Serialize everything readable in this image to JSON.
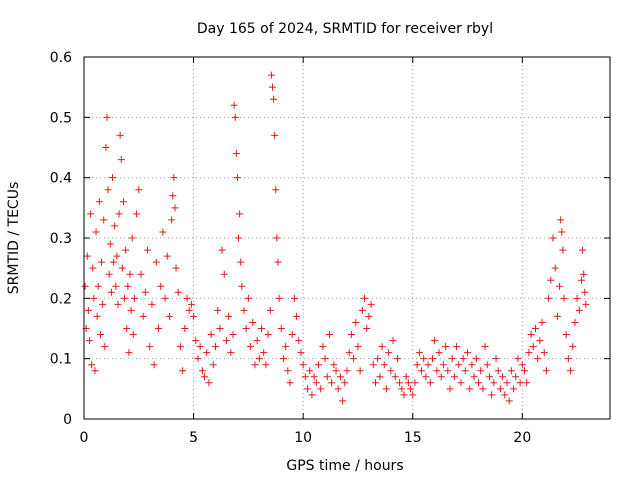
{
  "chart_data": {
    "type": "scatter",
    "title": "Day 165 of 2024, SRMTID for receiver rbyl",
    "xlabel": "GPS time / hours",
    "ylabel": "SRMTID / TECUs",
    "xlim": [
      0,
      24
    ],
    "ylim": [
      0,
      0.6
    ],
    "xticks": [
      "0",
      "5",
      "10",
      "15",
      "20"
    ],
    "yticks": [
      "0",
      "0.1",
      "0.2",
      "0.3",
      "0.4",
      "0.5",
      "0.6"
    ],
    "grid": true,
    "marker": "plus",
    "color": "#e41a1c",
    "series": [
      {
        "name": "SRMTID",
        "points": [
          [
            0.05,
            0.22
          ],
          [
            0.1,
            0.15
          ],
          [
            0.15,
            0.27
          ],
          [
            0.2,
            0.18
          ],
          [
            0.25,
            0.13
          ],
          [
            0.3,
            0.34
          ],
          [
            0.35,
            0.09
          ],
          [
            0.4,
            0.25
          ],
          [
            0.45,
            0.2
          ],
          [
            0.5,
            0.08
          ],
          [
            0.55,
            0.31
          ],
          [
            0.6,
            0.17
          ],
          [
            0.65,
            0.22
          ],
          [
            0.7,
            0.36
          ],
          [
            0.75,
            0.14
          ],
          [
            0.8,
            0.26
          ],
          [
            0.85,
            0.19
          ],
          [
            0.9,
            0.33
          ],
          [
            0.95,
            0.12
          ],
          [
            1.0,
            0.45
          ],
          [
            1.05,
            0.5
          ],
          [
            1.1,
            0.38
          ],
          [
            1.15,
            0.24
          ],
          [
            1.2,
            0.29
          ],
          [
            1.25,
            0.21
          ],
          [
            1.3,
            0.4
          ],
          [
            1.35,
            0.26
          ],
          [
            1.4,
            0.32
          ],
          [
            1.45,
            0.22
          ],
          [
            1.5,
            0.27
          ],
          [
            1.55,
            0.19
          ],
          [
            1.6,
            0.34
          ],
          [
            1.65,
            0.47
          ],
          [
            1.7,
            0.43
          ],
          [
            1.75,
            0.25
          ],
          [
            1.8,
            0.36
          ],
          [
            1.85,
            0.2
          ],
          [
            1.9,
            0.28
          ],
          [
            1.95,
            0.15
          ],
          [
            2.0,
            0.22
          ],
          [
            2.05,
            0.11
          ],
          [
            2.1,
            0.24
          ],
          [
            2.15,
            0.18
          ],
          [
            2.2,
            0.3
          ],
          [
            2.25,
            0.14
          ],
          [
            2.3,
            0.2
          ],
          [
            2.4,
            0.34
          ],
          [
            2.5,
            0.38
          ],
          [
            2.6,
            0.24
          ],
          [
            2.7,
            0.17
          ],
          [
            2.8,
            0.21
          ],
          [
            2.9,
            0.28
          ],
          [
            3.0,
            0.12
          ],
          [
            3.1,
            0.19
          ],
          [
            3.2,
            0.09
          ],
          [
            3.3,
            0.26
          ],
          [
            3.4,
            0.15
          ],
          [
            3.5,
            0.22
          ],
          [
            3.6,
            0.31
          ],
          [
            3.7,
            0.2
          ],
          [
            3.8,
            0.27
          ],
          [
            3.9,
            0.17
          ],
          [
            4.0,
            0.33
          ],
          [
            4.05,
            0.37
          ],
          [
            4.1,
            0.4
          ],
          [
            4.15,
            0.35
          ],
          [
            4.2,
            0.25
          ],
          [
            4.3,
            0.21
          ],
          [
            4.4,
            0.12
          ],
          [
            4.5,
            0.08
          ],
          [
            4.6,
            0.15
          ],
          [
            4.7,
            0.2
          ],
          [
            4.8,
            0.18
          ],
          [
            4.9,
            0.19
          ],
          [
            5.0,
            0.17
          ],
          [
            5.1,
            0.13
          ],
          [
            5.2,
            0.1
          ],
          [
            5.3,
            0.12
          ],
          [
            5.4,
            0.08
          ],
          [
            5.5,
            0.07
          ],
          [
            5.6,
            0.11
          ],
          [
            5.7,
            0.06
          ],
          [
            5.8,
            0.14
          ],
          [
            5.9,
            0.09
          ],
          [
            6.0,
            0.12
          ],
          [
            6.1,
            0.18
          ],
          [
            6.2,
            0.15
          ],
          [
            6.3,
            0.28
          ],
          [
            6.4,
            0.24
          ],
          [
            6.5,
            0.13
          ],
          [
            6.6,
            0.17
          ],
          [
            6.7,
            0.11
          ],
          [
            6.8,
            0.14
          ],
          [
            6.85,
            0.52
          ],
          [
            6.9,
            0.5
          ],
          [
            6.95,
            0.44
          ],
          [
            7.0,
            0.4
          ],
          [
            7.05,
            0.3
          ],
          [
            7.1,
            0.34
          ],
          [
            7.15,
            0.26
          ],
          [
            7.2,
            0.22
          ],
          [
            7.3,
            0.18
          ],
          [
            7.4,
            0.15
          ],
          [
            7.5,
            0.2
          ],
          [
            7.6,
            0.12
          ],
          [
            7.7,
            0.16
          ],
          [
            7.8,
            0.09
          ],
          [
            7.9,
            0.13
          ],
          [
            8.0,
            0.1
          ],
          [
            8.1,
            0.15
          ],
          [
            8.2,
            0.11
          ],
          [
            8.3,
            0.09
          ],
          [
            8.4,
            0.14
          ],
          [
            8.5,
            0.18
          ],
          [
            8.55,
            0.57
          ],
          [
            8.6,
            0.55
          ],
          [
            8.65,
            0.53
          ],
          [
            8.7,
            0.47
          ],
          [
            8.75,
            0.38
          ],
          [
            8.8,
            0.3
          ],
          [
            8.85,
            0.26
          ],
          [
            8.9,
            0.2
          ],
          [
            9.0,
            0.15
          ],
          [
            9.1,
            0.1
          ],
          [
            9.2,
            0.12
          ],
          [
            9.3,
            0.08
          ],
          [
            9.4,
            0.06
          ],
          [
            9.5,
            0.14
          ],
          [
            9.6,
            0.2
          ],
          [
            9.7,
            0.17
          ],
          [
            9.8,
            0.13
          ],
          [
            9.9,
            0.11
          ],
          [
            10.0,
            0.09
          ],
          [
            10.1,
            0.07
          ],
          [
            10.2,
            0.05
          ],
          [
            10.3,
            0.08
          ],
          [
            10.4,
            0.04
          ],
          [
            10.5,
            0.07
          ],
          [
            10.6,
            0.06
          ],
          [
            10.7,
            0.09
          ],
          [
            10.8,
            0.05
          ],
          [
            10.9,
            0.12
          ],
          [
            11.0,
            0.1
          ],
          [
            11.1,
            0.07
          ],
          [
            11.2,
            0.14
          ],
          [
            11.3,
            0.06
          ],
          [
            11.4,
            0.09
          ],
          [
            11.5,
            0.08
          ],
          [
            11.6,
            0.05
          ],
          [
            11.7,
            0.07
          ],
          [
            11.8,
            0.03
          ],
          [
            11.9,
            0.06
          ],
          [
            12.0,
            0.08
          ],
          [
            12.1,
            0.11
          ],
          [
            12.2,
            0.14
          ],
          [
            12.3,
            0.1
          ],
          [
            12.4,
            0.16
          ],
          [
            12.5,
            0.12
          ],
          [
            12.6,
            0.08
          ],
          [
            12.7,
            0.18
          ],
          [
            12.8,
            0.2
          ],
          [
            12.9,
            0.15
          ],
          [
            13.0,
            0.17
          ],
          [
            13.1,
            0.19
          ],
          [
            13.2,
            0.09
          ],
          [
            13.3,
            0.06
          ],
          [
            13.4,
            0.1
          ],
          [
            13.5,
            0.07
          ],
          [
            13.6,
            0.12
          ],
          [
            13.7,
            0.09
          ],
          [
            13.8,
            0.05
          ],
          [
            13.9,
            0.11
          ],
          [
            14.0,
            0.08
          ],
          [
            14.1,
            0.13
          ],
          [
            14.2,
            0.07
          ],
          [
            14.3,
            0.1
          ],
          [
            14.4,
            0.06
          ],
          [
            14.5,
            0.05
          ],
          [
            14.6,
            0.04
          ],
          [
            14.7,
            0.07
          ],
          [
            14.8,
            0.06
          ],
          [
            14.9,
            0.05
          ],
          [
            15.0,
            0.04
          ],
          [
            15.1,
            0.06
          ],
          [
            15.2,
            0.09
          ],
          [
            15.3,
            0.11
          ],
          [
            15.4,
            0.08
          ],
          [
            15.5,
            0.1
          ],
          [
            15.6,
            0.07
          ],
          [
            15.7,
            0.09
          ],
          [
            15.8,
            0.06
          ],
          [
            15.9,
            0.1
          ],
          [
            16.0,
            0.13
          ],
          [
            16.1,
            0.08
          ],
          [
            16.2,
            0.11
          ],
          [
            16.3,
            0.07
          ],
          [
            16.4,
            0.09
          ],
          [
            16.5,
            0.12
          ],
          [
            16.6,
            0.08
          ],
          [
            16.7,
            0.05
          ],
          [
            16.8,
            0.1
          ],
          [
            16.9,
            0.07
          ],
          [
            17.0,
            0.12
          ],
          [
            17.1,
            0.09
          ],
          [
            17.2,
            0.06
          ],
          [
            17.3,
            0.1
          ],
          [
            17.4,
            0.08
          ],
          [
            17.5,
            0.11
          ],
          [
            17.6,
            0.05
          ],
          [
            17.7,
            0.09
          ],
          [
            17.8,
            0.07
          ],
          [
            17.9,
            0.1
          ],
          [
            18.0,
            0.06
          ],
          [
            18.1,
            0.08
          ],
          [
            18.2,
            0.05
          ],
          [
            18.3,
            0.12
          ],
          [
            18.4,
            0.09
          ],
          [
            18.5,
            0.07
          ],
          [
            18.6,
            0.04
          ],
          [
            18.7,
            0.06
          ],
          [
            18.8,
            0.1
          ],
          [
            18.9,
            0.08
          ],
          [
            19.0,
            0.05
          ],
          [
            19.1,
            0.07
          ],
          [
            19.2,
            0.04
          ],
          [
            19.3,
            0.06
          ],
          [
            19.4,
            0.03
          ],
          [
            19.5,
            0.08
          ],
          [
            19.6,
            0.05
          ],
          [
            19.7,
            0.07
          ],
          [
            19.8,
            0.1
          ],
          [
            19.9,
            0.06
          ],
          [
            20.0,
            0.09
          ],
          [
            20.1,
            0.08
          ],
          [
            20.2,
            0.06
          ],
          [
            20.3,
            0.11
          ],
          [
            20.4,
            0.14
          ],
          [
            20.5,
            0.12
          ],
          [
            20.6,
            0.15
          ],
          [
            20.7,
            0.1
          ],
          [
            20.8,
            0.13
          ],
          [
            20.9,
            0.16
          ],
          [
            21.0,
            0.11
          ],
          [
            21.1,
            0.08
          ],
          [
            21.2,
            0.2
          ],
          [
            21.3,
            0.23
          ],
          [
            21.4,
            0.3
          ],
          [
            21.5,
            0.25
          ],
          [
            21.6,
            0.17
          ],
          [
            21.7,
            0.22
          ],
          [
            21.75,
            0.33
          ],
          [
            21.8,
            0.31
          ],
          [
            21.85,
            0.28
          ],
          [
            21.9,
            0.2
          ],
          [
            22.0,
            0.14
          ],
          [
            22.1,
            0.1
          ],
          [
            22.2,
            0.08
          ],
          [
            22.3,
            0.12
          ],
          [
            22.4,
            0.16
          ],
          [
            22.5,
            0.2
          ],
          [
            22.6,
            0.18
          ],
          [
            22.7,
            0.23
          ],
          [
            22.75,
            0.28
          ],
          [
            22.8,
            0.24
          ],
          [
            22.85,
            0.21
          ],
          [
            22.9,
            0.19
          ]
        ]
      }
    ]
  }
}
